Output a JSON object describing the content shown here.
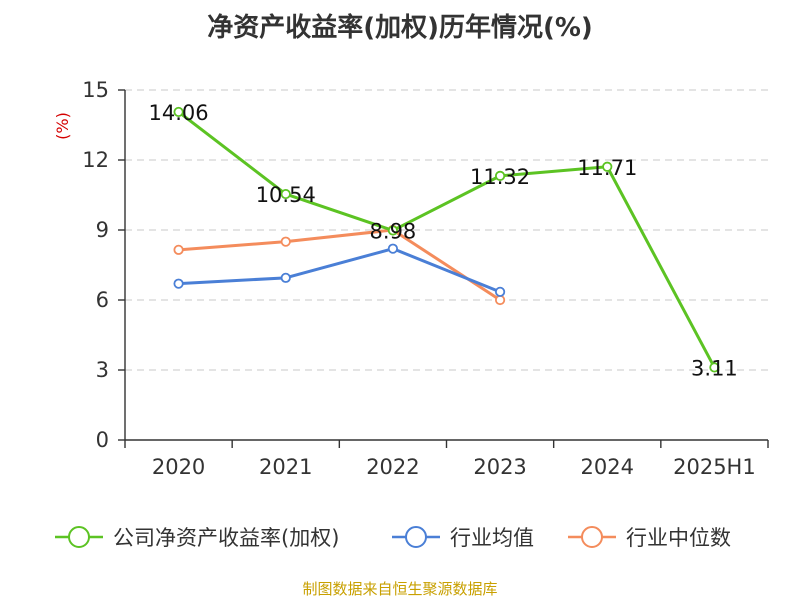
{
  "chart_data": {
    "type": "line",
    "title": "净资产收益率(加权)历年情况(%)",
    "ylabel": "(%)",
    "xlabel": "",
    "categories": [
      "2020",
      "2021",
      "2022",
      "2023",
      "2024",
      "2025H1"
    ],
    "ylim": [
      0,
      15
    ],
    "yticks": [
      0,
      3,
      6,
      9,
      12,
      15
    ],
    "grid": true,
    "legend_position": "bottom",
    "series": [
      {
        "name": "公司净资产收益率(加权)",
        "color": "#5cc323",
        "values": [
          14.06,
          10.54,
          8.98,
          11.32,
          11.71,
          3.11
        ],
        "labels": [
          "14.06",
          "10.54",
          "8.98",
          "11.32",
          "11.71",
          "3.11"
        ]
      },
      {
        "name": "行业均值",
        "color": "#4a7fd6",
        "values": [
          6.7,
          6.95,
          8.2,
          6.35,
          null,
          null
        ]
      },
      {
        "name": "行业中位数",
        "color": "#f48c5c",
        "values": [
          8.15,
          8.5,
          9.0,
          6.0,
          null,
          null
        ]
      }
    ]
  },
  "source": "制图数据来自恒生聚源数据库"
}
